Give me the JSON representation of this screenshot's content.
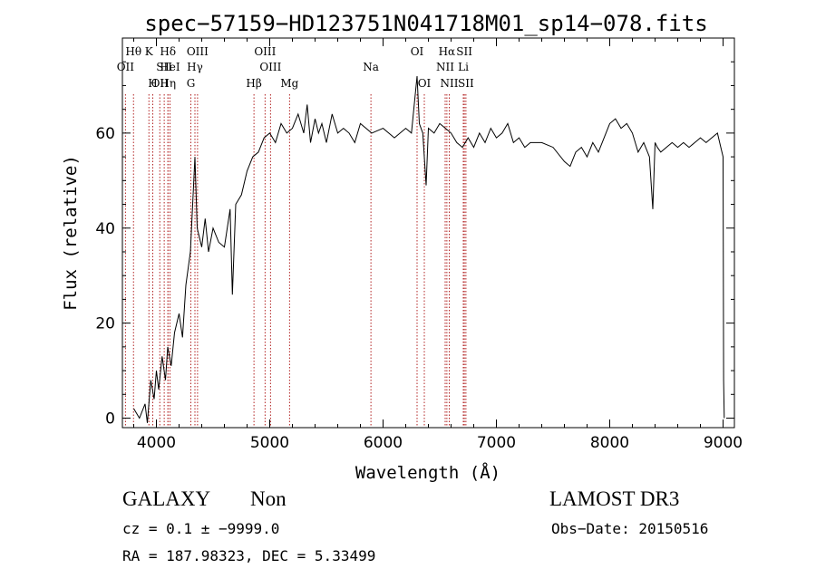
{
  "chart_data": {
    "type": "line",
    "title": "spec−57159−HD123751N041718M01_sp14−078.fits",
    "xlabel": "Wavelength (Å)",
    "ylabel": "Flux (relative)",
    "xlim": [
      3700,
      9100
    ],
    "ylim": [
      -2,
      80
    ],
    "xticks": [
      4000,
      5000,
      6000,
      7000,
      8000,
      9000
    ],
    "yticks": [
      0,
      20,
      40,
      60
    ],
    "grid": false,
    "legend": "none",
    "colors": {
      "spectrum": "#000000",
      "lines": "#b22222",
      "axes": "#000000"
    },
    "series": [
      {
        "x": [
          3800,
          3850,
          3900,
          3920,
          3950,
          3980,
          4000,
          4020,
          4050,
          4080,
          4100,
          4130,
          4160,
          4200,
          4230,
          4260,
          4300,
          4320,
          4340,
          4360,
          4380,
          4400,
          4430,
          4460,
          4500,
          4550,
          4600,
          4650,
          4670,
          4700,
          4750,
          4800,
          4850,
          4900,
          4950,
          5000,
          5050,
          5100,
          5150,
          5200,
          5250,
          5300,
          5330,
          5360,
          5400,
          5430,
          5460,
          5500,
          5550,
          5600,
          5650,
          5700,
          5750,
          5800,
          5900,
          6000,
          6100,
          6200,
          6250,
          6300,
          6320,
          6350,
          6380,
          6400,
          6450,
          6500,
          6550,
          6600,
          6650,
          6700,
          6750,
          6800,
          6850,
          6900,
          6950,
          7000,
          7050,
          7100,
          7150,
          7200,
          7250,
          7300,
          7400,
          7500,
          7600,
          7650,
          7700,
          7750,
          7800,
          7850,
          7900,
          7950,
          8000,
          8050,
          8100,
          8150,
          8200,
          8250,
          8300,
          8350,
          8380,
          8400,
          8420,
          8450,
          8500,
          8550,
          8600,
          8650,
          8700,
          8750,
          8800,
          8850,
          8900,
          8950,
          8980,
          9000,
          9005,
          9010
        ],
        "values": [
          2,
          0,
          3,
          -1,
          8,
          4,
          10,
          6,
          13,
          8,
          15,
          11,
          18,
          22,
          17,
          28,
          35,
          45,
          55,
          40,
          38,
          36,
          42,
          35,
          40,
          37,
          36,
          44,
          26,
          45,
          47,
          52,
          55,
          56,
          59,
          60,
          58,
          62,
          60,
          61,
          64,
          60,
          66,
          58,
          63,
          60,
          62,
          58,
          64,
          60,
          61,
          60,
          58,
          62,
          60,
          61,
          59,
          61,
          60,
          72,
          62,
          60,
          49,
          61,
          60,
          62,
          61,
          60,
          58,
          57,
          59,
          57,
          60,
          58,
          61,
          59,
          60,
          62,
          58,
          59,
          57,
          58,
          58,
          57,
          54,
          53,
          56,
          57,
          55,
          58,
          56,
          59,
          62,
          63,
          61,
          62,
          60,
          56,
          58,
          55,
          44,
          58,
          57,
          56,
          57,
          58,
          57,
          58,
          57,
          58,
          59,
          58,
          59,
          60,
          57,
          55,
          8,
          0
        ]
      }
    ],
    "emission_lines": [
      {
        "label": "OII",
        "x": 3727,
        "row": 2
      },
      {
        "label": "Hθ",
        "x": 3798,
        "row": 1
      },
      {
        "label": "OII",
        "x": 4030,
        "row": 3
      },
      {
        "label": "Hη",
        "x": 4102,
        "row": 3
      },
      {
        "label": "HeI",
        "x": 4120,
        "row": 2
      },
      {
        "label": "K",
        "x": 3934,
        "row": 1
      },
      {
        "label": "H",
        "x": 3968,
        "row": 3
      },
      {
        "label": "Hδ",
        "x": 4102,
        "row": 1
      },
      {
        "label": "SII",
        "x": 4069,
        "row": 2
      },
      {
        "label": "OIII",
        "x": 4363,
        "row": 1
      },
      {
        "label": "Hγ",
        "x": 4340,
        "row": 2
      },
      {
        "label": "G",
        "x": 4304,
        "row": 3
      },
      {
        "label": "OIII",
        "x": 4959,
        "row": 1
      },
      {
        "label": "OIII",
        "x": 5007,
        "row": 2
      },
      {
        "label": "Hβ",
        "x": 4861,
        "row": 3
      },
      {
        "label": "Mg",
        "x": 5175,
        "row": 3
      },
      {
        "label": "Na",
        "x": 5893,
        "row": 2
      },
      {
        "label": "OI",
        "x": 6300,
        "row": 1
      },
      {
        "label": "OI",
        "x": 6364,
        "row": 3
      },
      {
        "label": "Hα",
        "x": 6563,
        "row": 1
      },
      {
        "label": "NII",
        "x": 6548,
        "row": 2
      },
      {
        "label": "NII",
        "x": 6584,
        "row": 3
      },
      {
        "label": "SII",
        "x": 6717,
        "row": 1
      },
      {
        "label": "Li",
        "x": 6708,
        "row": 2
      },
      {
        "label": "SII",
        "x": 6731,
        "row": 3
      }
    ]
  },
  "info": {
    "class": "GALAXY",
    "subclass": "Non",
    "survey": "LAMOST DR3",
    "redshift_line": "cz = 0.1 ± −9999.0",
    "obs_date": "Obs−Date: 20150516",
    "coords": "RA = 187.98323, DEC =   5.33499"
  }
}
